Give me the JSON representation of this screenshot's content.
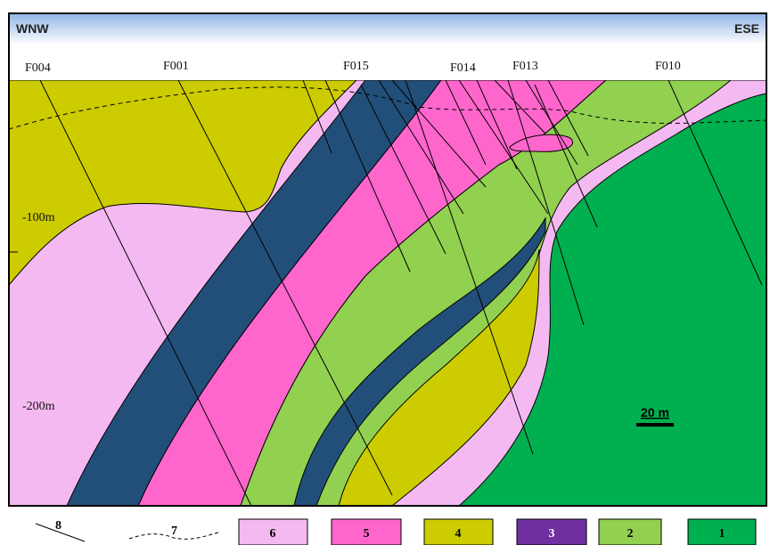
{
  "header": {
    "left": "WNW",
    "right": "ESE"
  },
  "faults": [
    "F004",
    "F001",
    "F015",
    "F014",
    "F013",
    "F010"
  ],
  "depths": [
    "-100m",
    "-200m"
  ],
  "scale": "20 m",
  "legend": [
    "8",
    "7",
    "6",
    "5",
    "4",
    "3",
    "2",
    "1"
  ]
}
